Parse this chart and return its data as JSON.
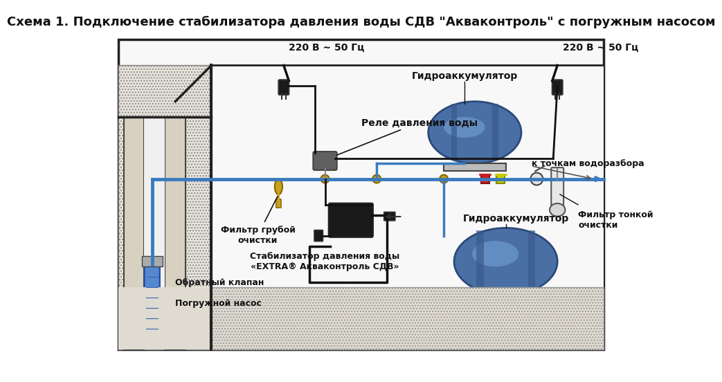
{
  "title": "Схема 1. Подключение стабилизатора давления воды СДВ \"Акваконтроль\" с погружным насосом",
  "bg_color": "#ffffff",
  "title_fontsize": 13,
  "diagram_bg": "#f5f5f5",
  "ground_color": "#d4c9a8",
  "ground_pattern_color": "#888888",
  "pipe_color_blue": "#3a7bbf",
  "pipe_color_black": "#222222",
  "border_color": "#222222",
  "text_color": "#111111",
  "labels": {
    "voltage_left": "220 В ~ 50 Гц",
    "voltage_right": "220 В ~ 50 Гц",
    "relay": "Реле давления воды",
    "hydro_top": "Гидроаккумулятор",
    "hydro_bottom": "Гидроаккумулятор",
    "filter_coarse": "Фильтр грубой\nочистки",
    "filter_fine": "Фильтр тонкой\nочистки",
    "check_valve": "Обратный клапан",
    "pump": "Погружной насос",
    "stabilizer": "Стабилизатор давления воды\n«EXTRA® Акваконтроль СДВ»",
    "water_points": "к точкам водоразбора"
  },
  "colors": {
    "hydro_tank": "#4a6fa5",
    "hydro_dark": "#2a4a7a",
    "hydro_light": "#7aabdf",
    "ground_fill": "#c8bfa0",
    "wall_fill": "#e8e0d0",
    "pump_body": "#5588cc",
    "brass_fitting": "#c8a020",
    "relay_body": "#606060",
    "filter_body": "#b08820",
    "valve_red": "#cc2020",
    "valve_yellow": "#cccc00",
    "valve_blue": "#2020cc",
    "arrow_color": "#3a7bbf"
  }
}
